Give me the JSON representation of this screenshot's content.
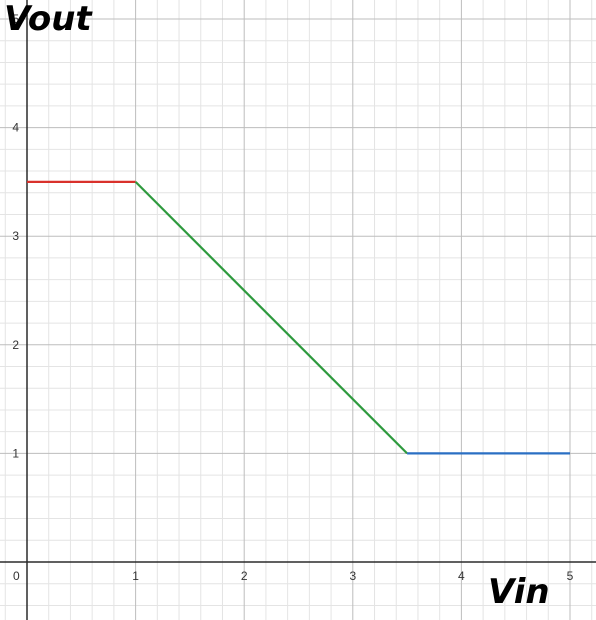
{
  "chart_data": {
    "type": "line",
    "xlabel": "Vin",
    "ylabel": "Vout",
    "xlim": [
      0,
      5
    ],
    "ylim": [
      0,
      5
    ],
    "x_ticks": [
      0,
      1,
      2,
      3,
      4,
      5
    ],
    "y_ticks": [
      1,
      2,
      3,
      4,
      5
    ],
    "origin_label": "0",
    "grid": true,
    "series": [
      {
        "color": "#d9312b",
        "x": [
          0,
          1
        ],
        "y": [
          3.5,
          3.5
        ]
      },
      {
        "color": "#2e9a3e",
        "x": [
          1,
          3.5
        ],
        "y": [
          3.5,
          1
        ]
      },
      {
        "color": "#2a6fc3",
        "x": [
          3.5,
          5
        ],
        "y": [
          1,
          1
        ]
      }
    ]
  }
}
